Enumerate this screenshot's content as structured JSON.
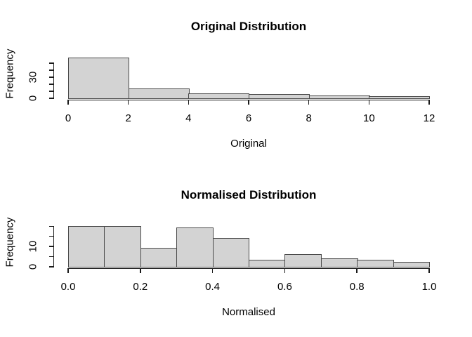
{
  "page": {
    "background": "#ffffff"
  },
  "colors": {
    "bar_fill": "#d3d3d3",
    "bar_border": "#4a4a4a",
    "axis": "#1a1a1a",
    "text": "#000000"
  },
  "chart_data": [
    {
      "type": "bar",
      "subtype": "histogram",
      "title": "Original Distribution",
      "xlabel": "Original",
      "ylabel": "Frequency",
      "bin_start": 0,
      "bin_width": 2,
      "categories": [
        "0-2",
        "2-4",
        "4-6",
        "6-8",
        "8-10",
        "10-12"
      ],
      "values": [
        57,
        13,
        6,
        5,
        3,
        2
      ],
      "xlim": [
        0,
        12
      ],
      "ylim": [
        0,
        57
      ],
      "x_ticks": [
        0,
        2,
        4,
        6,
        8,
        10,
        12
      ],
      "x_tick_labels": [
        "0",
        "2",
        "4",
        "6",
        "8",
        "10",
        "12"
      ],
      "y_ticks": [
        0,
        10,
        20,
        30,
        40,
        50
      ],
      "y_tick_labels": [
        "0",
        "",
        "",
        "30",
        "",
        ""
      ],
      "grid": false,
      "legend": false
    },
    {
      "type": "bar",
      "subtype": "histogram",
      "title": "Normalised Distribution",
      "xlabel": "Normalised",
      "ylabel": "Frequency",
      "bin_start": 0,
      "bin_width": 0.1,
      "categories": [
        "0.0-0.1",
        "0.1-0.2",
        "0.2-0.3",
        "0.3-0.4",
        "0.4-0.5",
        "0.5-0.6",
        "0.6-0.7",
        "0.7-0.8",
        "0.8-0.9",
        "0.9-1.0"
      ],
      "values": [
        20,
        20,
        9,
        19,
        14,
        3,
        6,
        4,
        3,
        2
      ],
      "xlim": [
        0,
        1
      ],
      "ylim": [
        0,
        20
      ],
      "x_ticks": [
        0,
        0.2,
        0.4,
        0.6,
        0.8,
        1.0
      ],
      "x_tick_labels": [
        "0.0",
        "0.2",
        "0.4",
        "0.6",
        "0.8",
        "1.0"
      ],
      "y_ticks": [
        0,
        5,
        10,
        15,
        20
      ],
      "y_tick_labels": [
        "0",
        "",
        "10",
        "",
        ""
      ],
      "grid": false,
      "legend": false
    }
  ]
}
